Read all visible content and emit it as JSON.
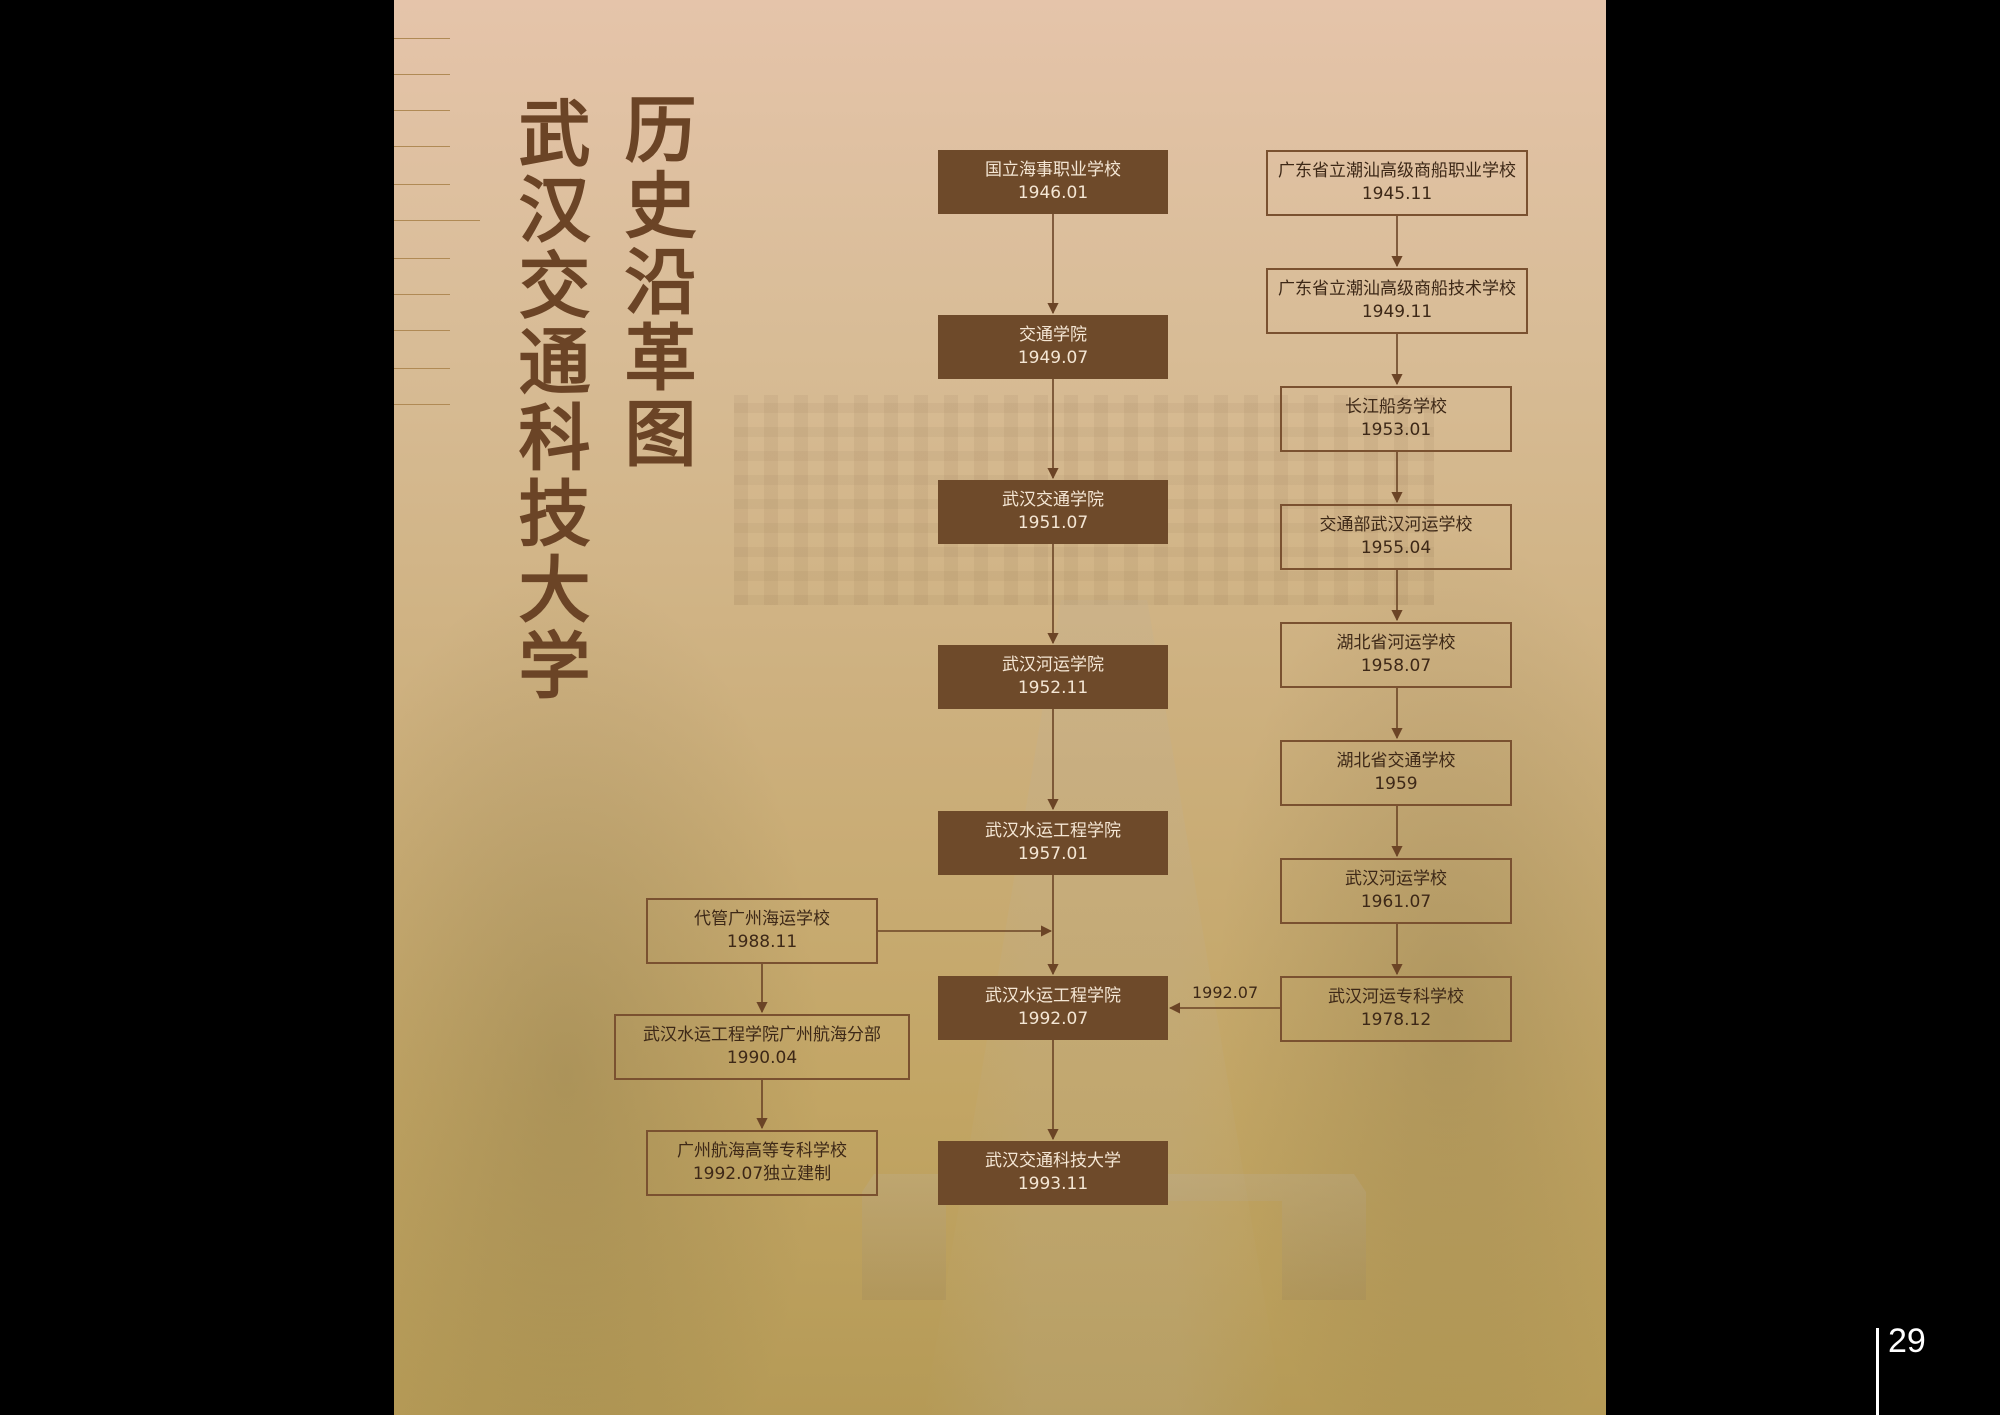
{
  "title_main": "武汉交通科技大学",
  "title_sub": "历史沿革图",
  "page_number": "29",
  "colors": {
    "box_fill": "#6e4a2a",
    "box_border": "#7a5130",
    "arrow": "#6b4426",
    "title": "#6b4426"
  },
  "main_line": [
    {
      "name": "国立海事职业学校",
      "date": "1946.01"
    },
    {
      "name": "交通学院",
      "date": "1949.07"
    },
    {
      "name": "武汉交通学院",
      "date": "1951.07"
    },
    {
      "name": "武汉河运学院",
      "date": "1952.11"
    },
    {
      "name": "武汉水运工程学院",
      "date": "1957.01"
    },
    {
      "name": "武汉水运工程学院",
      "date": "1992.07"
    },
    {
      "name": "武汉交通科技大学",
      "date": "1993.11"
    }
  ],
  "right_line": [
    {
      "name": "广东省立潮汕高级商船职业学校",
      "date": "1945.11"
    },
    {
      "name": "广东省立潮汕高级商船技术学校",
      "date": "1949.11"
    },
    {
      "name": "长江船务学校",
      "date": "1953.01"
    },
    {
      "name": "交通部武汉河运学校",
      "date": "1955.04"
    },
    {
      "name": "湖北省河运学校",
      "date": "1958.07"
    },
    {
      "name": "湖北省交通学校",
      "date": "1959"
    },
    {
      "name": "武汉河运学校",
      "date": "1961.07"
    },
    {
      "name": "武汉河运专科学校",
      "date": "1978.12"
    }
  ],
  "left_line": [
    {
      "name": "代管广州海运学校",
      "date": "1988.11"
    },
    {
      "name": "武汉水运工程学院广州航海分部",
      "date": "1990.04"
    },
    {
      "name": "广州航海高等专科学校",
      "date": "1992.07独立建制"
    }
  ],
  "merge_label": "1992.07"
}
